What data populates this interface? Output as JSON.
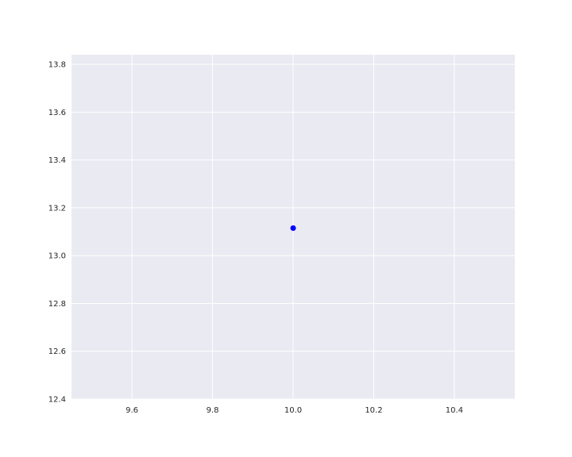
{
  "chart_data": {
    "type": "scatter",
    "title": "",
    "xlabel": "",
    "ylabel": "",
    "xlim": [
      9.45,
      10.55
    ],
    "ylim": [
      12.4,
      13.84
    ],
    "xticks": [
      9.6,
      9.8,
      10.0,
      10.2,
      10.4
    ],
    "yticks": [
      12.4,
      12.6,
      12.8,
      13.0,
      13.2,
      13.4,
      13.6,
      13.8
    ],
    "xtick_labels": [
      "9.6",
      "9.8",
      "10.0",
      "10.2",
      "10.4"
    ],
    "ytick_labels": [
      "12.4",
      "12.6",
      "12.8",
      "13.0",
      "13.2",
      "13.4",
      "13.6",
      "13.8"
    ],
    "grid": true,
    "series": [
      {
        "points": [
          {
            "x": 10.0,
            "y": 13.115
          }
        ],
        "color": "#0000ff"
      }
    ],
    "colors": {
      "plot_background": "#eaeaf2",
      "grid": "#ffffff",
      "marker": "#0000ff"
    }
  }
}
